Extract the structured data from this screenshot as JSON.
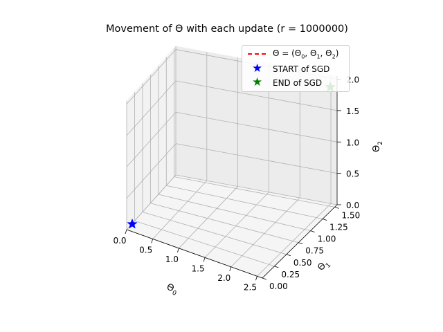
{
  "chart_data": {
    "type": "scatter",
    "projection": "3d",
    "title": "Movement of Θ with each update (r = 1000000)",
    "axes": {
      "x": {
        "label": "Θ0",
        "range": [
          0.0,
          2.6
        ],
        "ticks": [
          0.0,
          0.5,
          1.0,
          1.5,
          2.0,
          2.5
        ],
        "tick_labels": [
          "0.0",
          "0.5",
          "1.0",
          "1.5",
          "2.0",
          "2.5"
        ]
      },
      "y": {
        "label": "Θ1",
        "range": [
          0.0,
          1.55
        ],
        "ticks": [
          0.0,
          0.25,
          0.5,
          0.75,
          1.0,
          1.25,
          1.5
        ],
        "tick_labels": [
          "0.00",
          "0.25",
          "0.50",
          "0.75",
          "1.00",
          "1.25",
          "1.50"
        ]
      },
      "z": {
        "label": "Θ2",
        "range": [
          0.0,
          2.05
        ],
        "ticks": [
          0.0,
          0.5,
          1.0,
          1.5,
          2.0
        ],
        "tick_labels": [
          "0.0",
          "0.5",
          "1.0",
          "1.5",
          "2.0"
        ]
      }
    },
    "grid": true,
    "legend_position": "top-right",
    "series": [
      {
        "name": "Θ = (Θ0, Θ1, Θ2)",
        "kind": "line",
        "style": "dashed",
        "color": "#ff0000",
        "points": []
      },
      {
        "name": "START of SGD",
        "kind": "marker",
        "marker": "star",
        "color": "#0000ff",
        "points": [
          {
            "x": 0.0,
            "y": 0.0,
            "z": 0.0
          }
        ]
      },
      {
        "name": "END of SGD",
        "kind": "marker",
        "marker": "star",
        "color": "#008000",
        "points": [
          {
            "x": 2.4,
            "y": 1.55,
            "z": 1.75
          }
        ]
      }
    ]
  }
}
